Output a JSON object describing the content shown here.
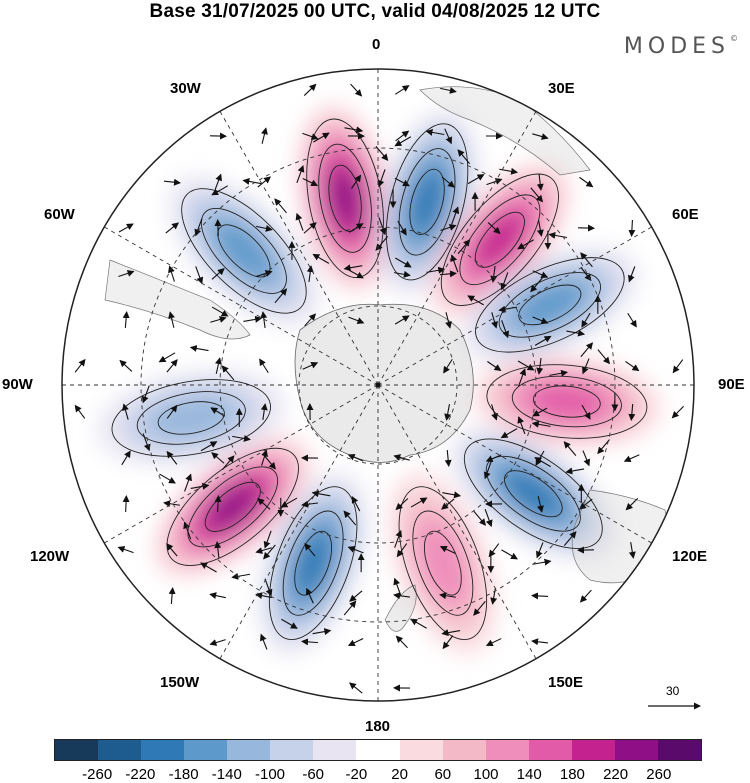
{
  "header": {
    "title": "Base 31/07/2025 00 UTC, valid 04/08/2025 12 UTC",
    "brand": "MODES",
    "brand_mark": "©"
  },
  "map": {
    "projection": "south-polar-stereographic",
    "longitude_labels": {
      "top": "0",
      "top_right": "30E",
      "right_upper": "60E",
      "right": "90E",
      "right_lower": "120E",
      "bottom_right": "150E",
      "bottom": "180",
      "bottom_left": "150W",
      "left_lower": "120W",
      "left": "90W",
      "left_upper": "60W",
      "top_left": "30W"
    },
    "reference_vector_label": "30",
    "anomaly_centers": [
      {
        "sign": "positive",
        "lon": "10W",
        "strength": 220
      },
      {
        "sign": "negative",
        "lon": "15E",
        "strength": -200
      },
      {
        "sign": "positive",
        "lon": "40E",
        "strength": 180
      },
      {
        "sign": "negative",
        "lon": "65E",
        "strength": -160
      },
      {
        "sign": "positive",
        "lon": "95E",
        "strength": 160
      },
      {
        "sign": "negative",
        "lon": "125E",
        "strength": -180
      },
      {
        "sign": "positive",
        "lon": "160E",
        "strength": 120
      },
      {
        "sign": "negative",
        "lon": "160W",
        "strength": -200
      },
      {
        "sign": "positive",
        "lon": "130W",
        "strength": 220
      },
      {
        "sign": "negative",
        "lon": "100W",
        "strength": -100
      },
      {
        "sign": "negative",
        "lon": "45W",
        "strength": -160
      }
    ]
  },
  "colorbar": {
    "colors": [
      "#173a5a",
      "#1e5c8f",
      "#2f7ab6",
      "#5d9acb",
      "#98b7dc",
      "#c6d1ea",
      "#e8e4f1",
      "#ffffff",
      "#f9dbe0",
      "#f4b9c7",
      "#ef8dbb",
      "#e25ba8",
      "#c4238f",
      "#8f0f86",
      "#5a0a6b"
    ],
    "ticks": [
      "-260",
      "-220",
      "-180",
      "-140",
      "-100",
      "-60",
      "-20",
      "20",
      "60",
      "100",
      "140",
      "180",
      "220",
      "260"
    ]
  }
}
